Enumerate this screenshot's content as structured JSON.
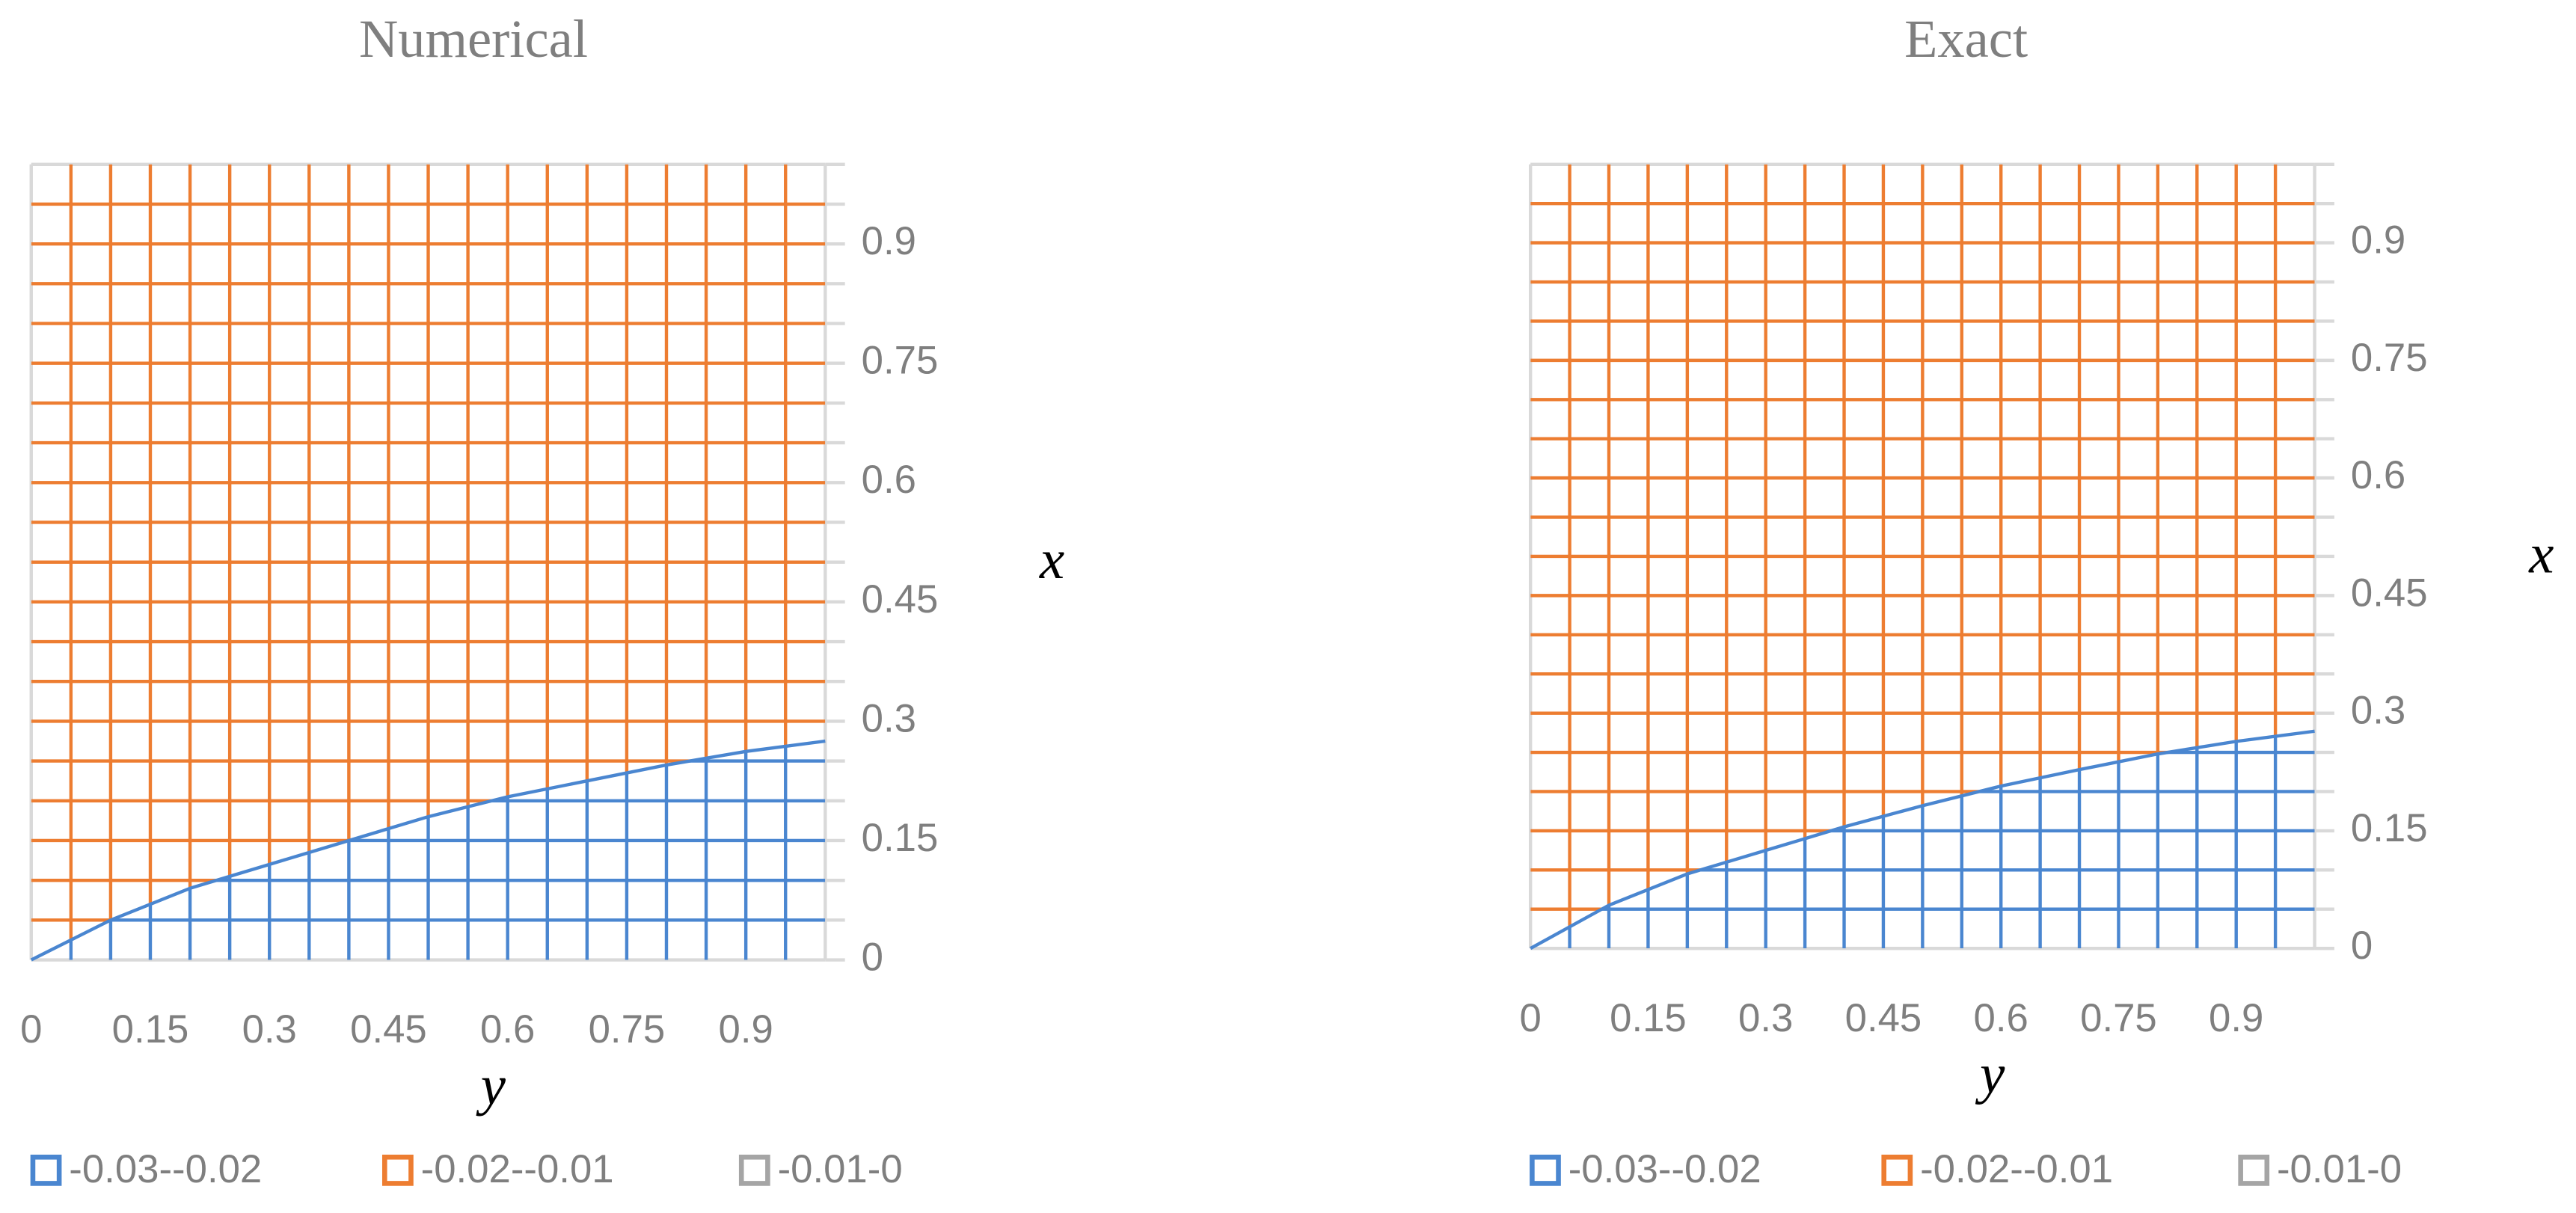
{
  "chart_data": [
    {
      "type": "contour",
      "title": "Numerical",
      "xlabel": "y",
      "ylabel": "x",
      "xlim": [
        0,
        1
      ],
      "ylim": [
        0,
        1
      ],
      "xticks": [
        0,
        0.15,
        0.3,
        0.45,
        0.6,
        0.75,
        0.9
      ],
      "yticks": [
        0,
        0.15,
        0.3,
        0.45,
        0.6,
        0.75,
        0.9
      ],
      "minor_ticks": [
        0,
        0.05,
        0.1,
        0.15,
        0.2,
        0.25,
        0.3,
        0.35,
        0.4,
        0.45,
        0.5,
        0.55,
        0.6,
        0.65,
        0.7,
        0.75,
        0.8,
        0.85,
        0.9,
        0.95,
        1
      ],
      "series": [
        {
          "name": "-0.03--0.02",
          "color": "#4a86d0",
          "x": [
            0,
            0.1,
            0.2,
            0.3,
            0.4,
            0.5,
            0.6,
            0.7,
            0.8,
            0.9,
            1.0
          ],
          "values": [
            0,
            0.05,
            0.09,
            0.12,
            0.15,
            0.18,
            0.205,
            0.225,
            0.245,
            0.262,
            0.275
          ]
        },
        {
          "name": "-0.02--0.01",
          "color": "#ed7d31"
        },
        {
          "name": "-0.01-0",
          "color": "#a5a5a5"
        }
      ]
    },
    {
      "type": "contour",
      "title": "Exact",
      "xlabel": "y",
      "ylabel": "x",
      "xlim": [
        0,
        1
      ],
      "ylim": [
        0,
        1
      ],
      "xticks": [
        0,
        0.15,
        0.3,
        0.45,
        0.6,
        0.75,
        0.9
      ],
      "yticks": [
        0,
        0.15,
        0.3,
        0.45,
        0.6,
        0.75,
        0.9
      ],
      "minor_ticks": [
        0,
        0.05,
        0.1,
        0.15,
        0.2,
        0.25,
        0.3,
        0.35,
        0.4,
        0.45,
        0.5,
        0.55,
        0.6,
        0.65,
        0.7,
        0.75,
        0.8,
        0.85,
        0.9,
        0.95,
        1
      ],
      "series": [
        {
          "name": "-0.03--0.02",
          "color": "#4a86d0",
          "x": [
            0,
            0.1,
            0.2,
            0.3,
            0.4,
            0.5,
            0.6,
            0.7,
            0.8,
            0.9,
            1.0
          ],
          "values": [
            0,
            0.055,
            0.095,
            0.125,
            0.155,
            0.182,
            0.207,
            0.228,
            0.248,
            0.264,
            0.277
          ]
        },
        {
          "name": "-0.02--0.01",
          "color": "#ed7d31"
        },
        {
          "name": "-0.01-0",
          "color": "#a5a5a5"
        }
      ]
    }
  ]
}
